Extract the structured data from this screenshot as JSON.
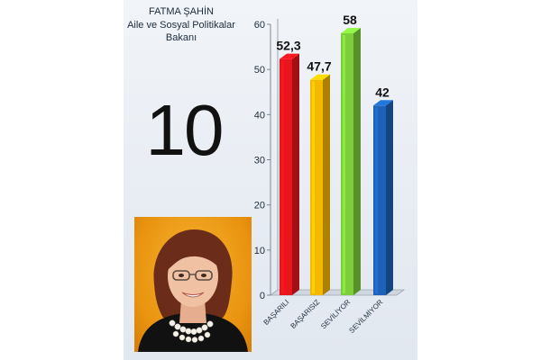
{
  "header": {
    "name": "FATMA ŞAHİN",
    "title_line1": "Aile ve Sosyal Politikalar",
    "title_line2": "Bakanı"
  },
  "rank": "10",
  "colors": {
    "background": "#e7ecf3",
    "bar_red": "#e8161c",
    "bar_yellow": "#f5b800",
    "bar_green": "#7ccf3a",
    "bar_blue": "#1d62b8"
  },
  "chart_data": {
    "type": "bar",
    "categories": [
      "BAŞARILI",
      "BAŞARISIZ",
      "SEVİLİYOR",
      "SEVİLMİYOR"
    ],
    "values": [
      52.3,
      47.7,
      58,
      42
    ],
    "value_labels": [
      "52,3",
      "47,7",
      "58",
      "42"
    ],
    "bar_colors": [
      "#e8161c",
      "#f5b800",
      "#7ccf3a",
      "#1d62b8"
    ],
    "ylim": [
      0,
      60
    ],
    "yticks": [
      0,
      10,
      20,
      30,
      40,
      50,
      60
    ],
    "grid": false,
    "legend": "none",
    "style": "3d"
  }
}
